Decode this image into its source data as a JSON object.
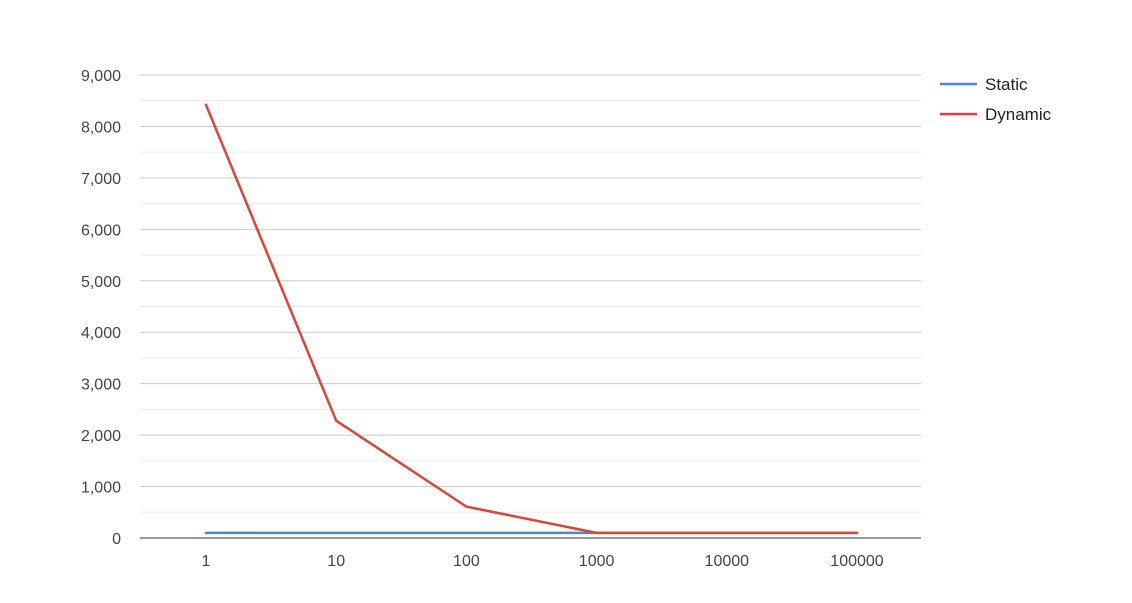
{
  "chart_data": {
    "type": "line",
    "categories": [
      "1",
      "10",
      "100",
      "1000",
      "10000",
      "100000"
    ],
    "series": [
      {
        "name": "Static",
        "color": "#4a86d8",
        "values": [
          100,
          100,
          100,
          100,
          100,
          100
        ]
      },
      {
        "name": "Dynamic",
        "color": "#d6473a",
        "values": [
          8420,
          2280,
          610,
          100,
          100,
          100
        ]
      }
    ],
    "yticks": [
      "0",
      "1,000",
      "2,000",
      "3,000",
      "4,000",
      "5,000",
      "6,000",
      "7,000",
      "8,000",
      "9,000"
    ],
    "ylim": [
      0,
      9000
    ],
    "grid": true,
    "legend_position": "right"
  }
}
